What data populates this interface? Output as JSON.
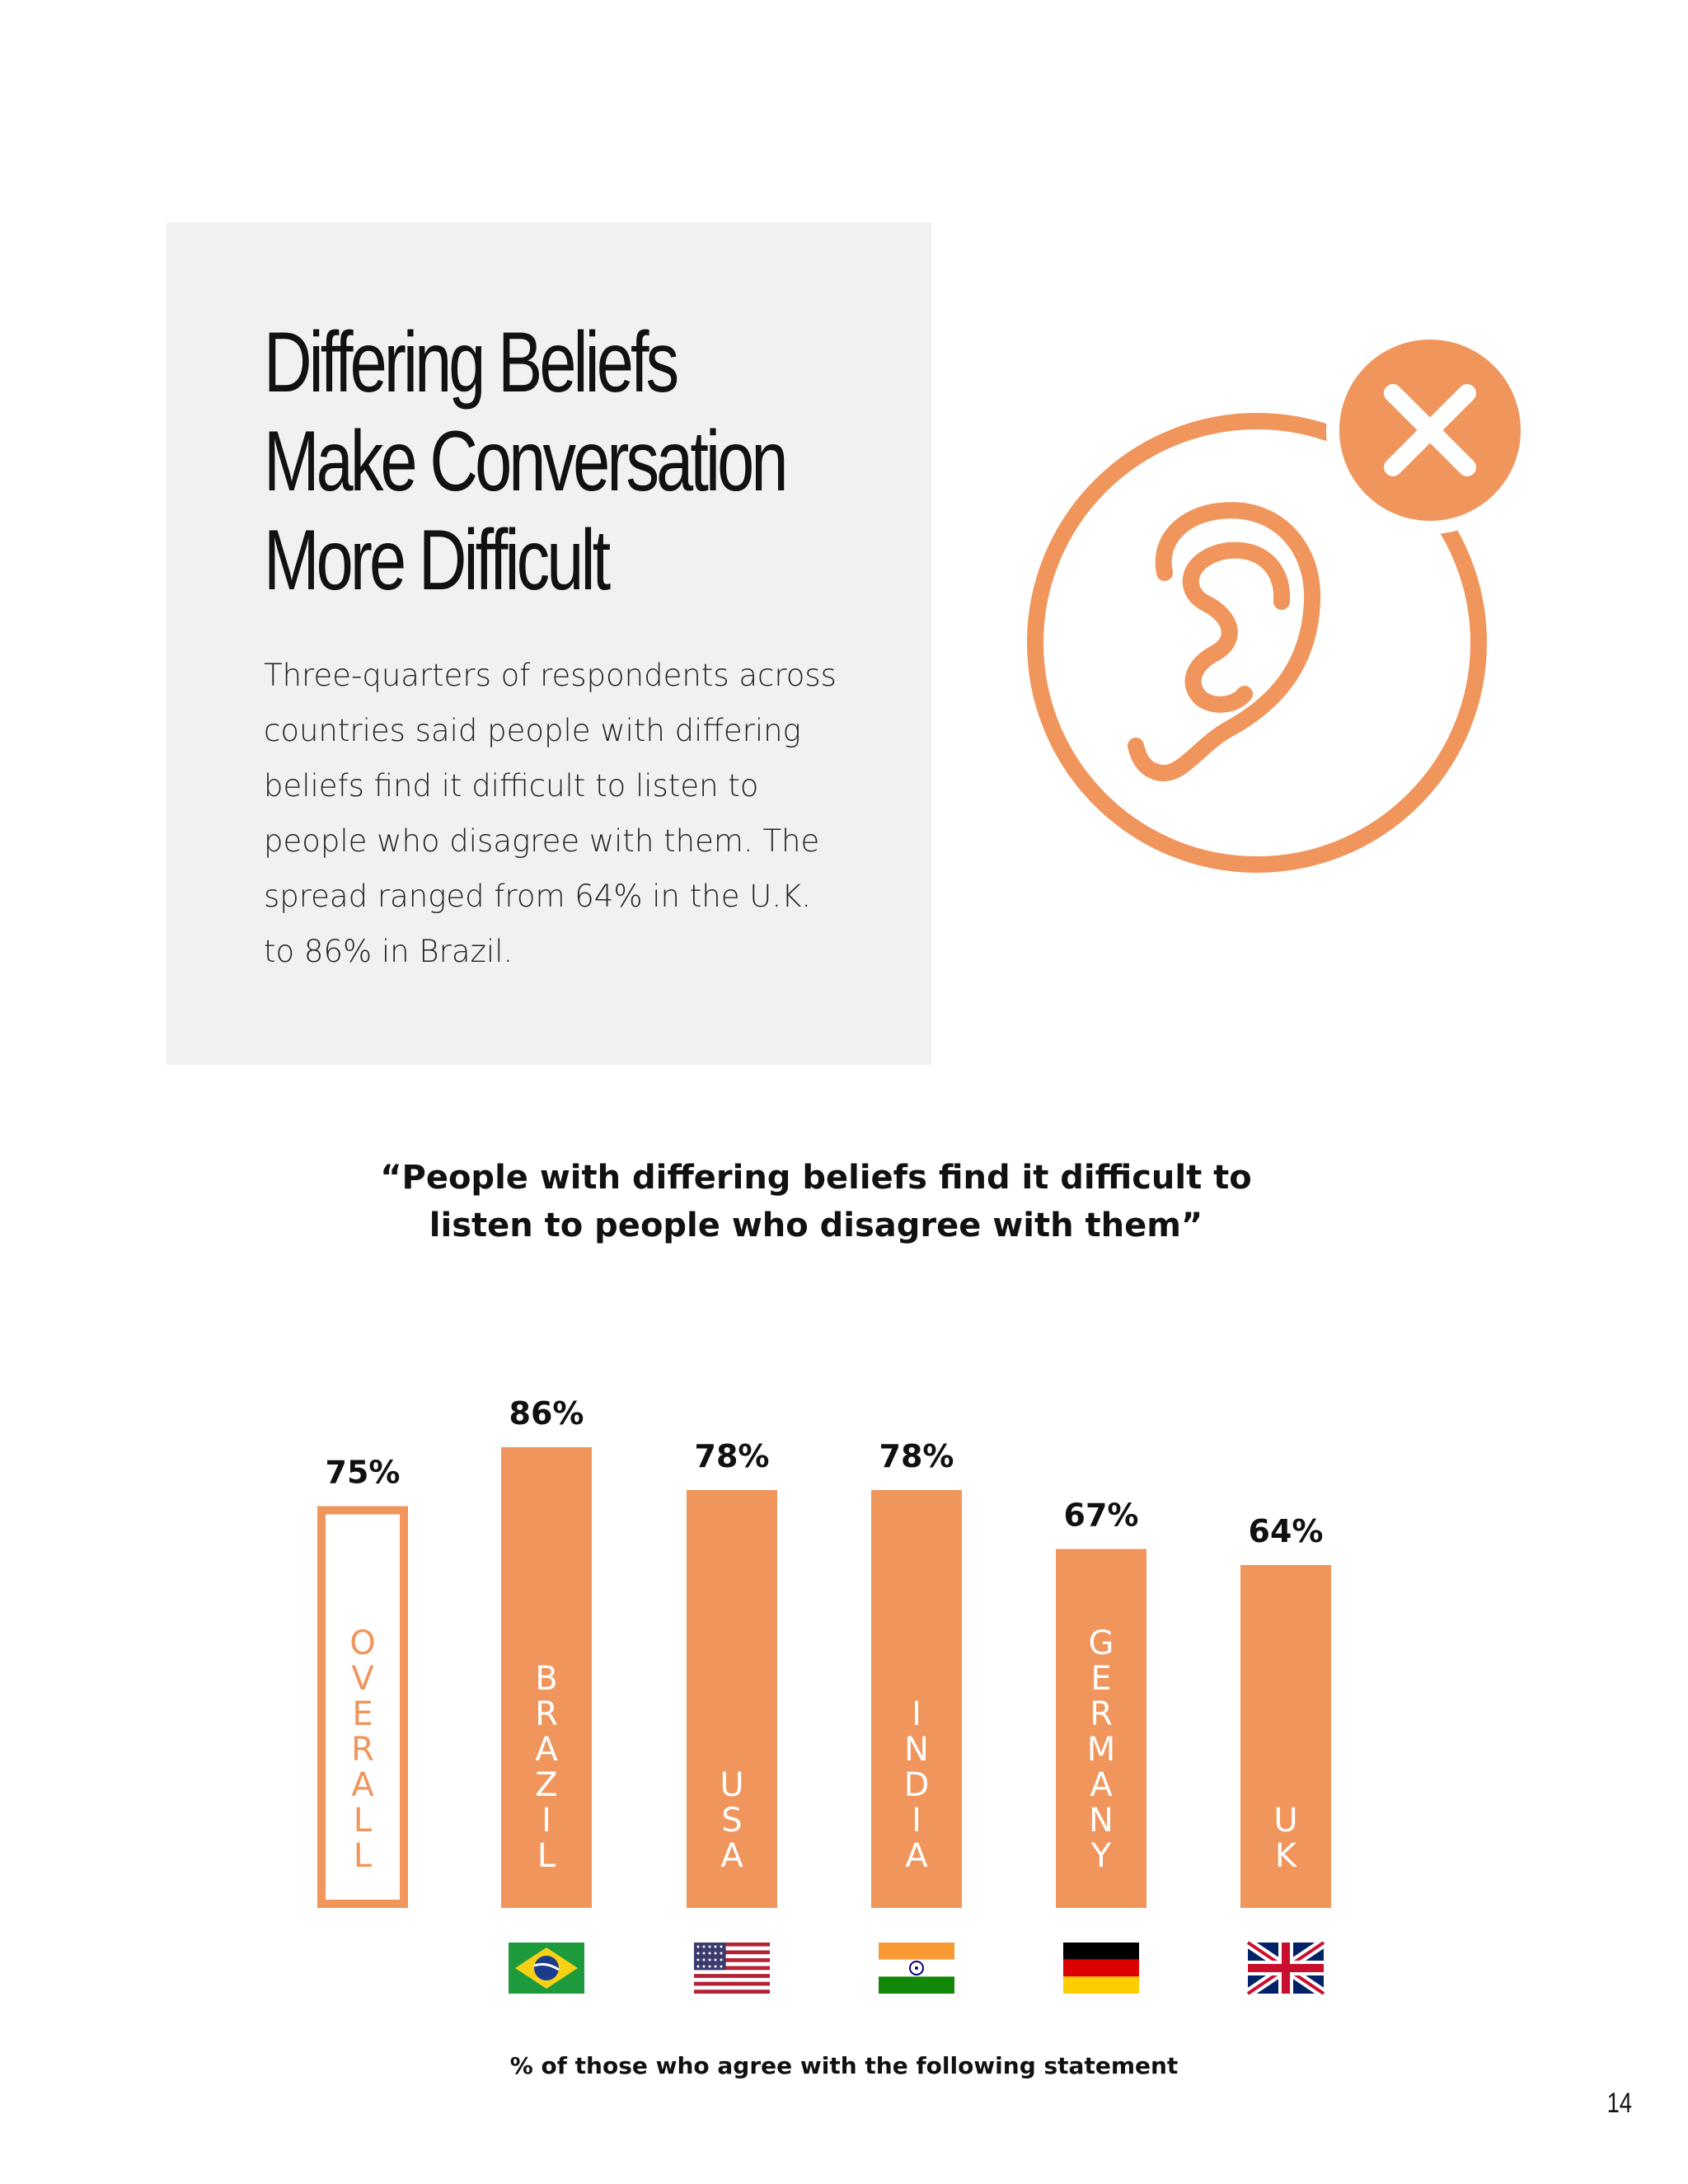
{
  "intro": {
    "title_lines": [
      "Differing Beliefs",
      "Make Conversation",
      "More Difficult"
    ],
    "body": "Three-quarters of respondents across countries said people with differing beliefs find it difficult to listen to people who disagree with them. The spread ranged from 64% in the U.K. to 86% in Brazil."
  },
  "icon": "ear-with-x-icon",
  "colors": {
    "accent": "#f0955b",
    "panel": "#f1f1f1",
    "text": "#111111"
  },
  "chart_data": {
    "type": "bar",
    "title": "“People with differing beliefs find it difficult to listen to people who disagree with them”",
    "xlabel": "",
    "ylabel": "",
    "ylim": [
      0,
      100
    ],
    "categories": [
      "OVERALL",
      "BRAZIL",
      "USA",
      "INDIA",
      "GERMANY",
      "UK"
    ],
    "values": [
      75,
      86,
      78,
      78,
      67,
      64
    ],
    "value_labels": [
      "75%",
      "86%",
      "78%",
      "78%",
      "67%",
      "64%"
    ],
    "flags": [
      null,
      "brazil-flag-icon",
      "usa-flag-icon",
      "india-flag-icon",
      "germany-flag-icon",
      "uk-flag-icon"
    ],
    "footnote": "% of those who agree with the following statement"
  },
  "page_number": "14"
}
